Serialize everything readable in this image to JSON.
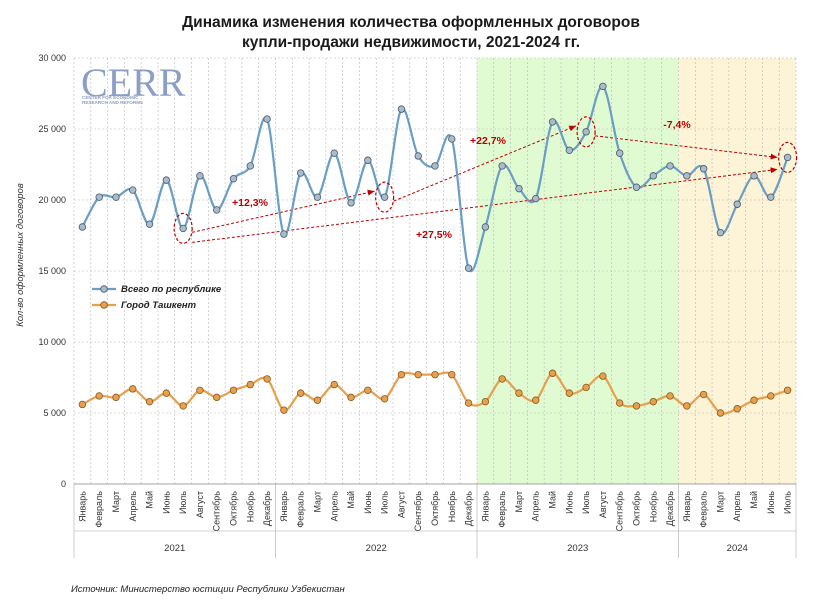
{
  "chart_data": {
    "type": "line",
    "title_line1": "Динамика изменения количества оформленных договоров",
    "title_line2": "купли-продажи недвижимости, 2021-2024 гг.",
    "ylabel": "Кол-во оформленных договоров",
    "ylim": [
      0,
      30000
    ],
    "y_ticks": [
      {
        "value": 0,
        "label": "0"
      },
      {
        "value": 5000,
        "label": "5 000"
      },
      {
        "value": 10000,
        "label": "10 000"
      },
      {
        "value": 15000,
        "label": "15 000"
      },
      {
        "value": 20000,
        "label": "20 000"
      },
      {
        "value": 25000,
        "label": "25 000"
      },
      {
        "value": 30000,
        "label": "30 000"
      }
    ],
    "grid": true,
    "legend_position": "center-left",
    "categories": [
      "Январь",
      "Февраль",
      "Март",
      "Апрель",
      "Май",
      "Июнь",
      "Июль",
      "Август",
      "Сентябрь",
      "Октябрь",
      "Ноябрь",
      "Декабрь",
      "Январь",
      "Февраль",
      "Март",
      "Апрель",
      "Май",
      "Июнь",
      "Июль",
      "Август",
      "Сентябрь",
      "Октябрь",
      "Ноябрь",
      "Декабрь",
      "Январь",
      "Февраль",
      "Март",
      "Апрель",
      "Май",
      "Июнь",
      "Июль",
      "Август",
      "Сентябрь",
      "Октябрь",
      "Ноябрь",
      "Декабрь",
      "Январь",
      "Февраль",
      "Март",
      "Апрель",
      "Май",
      "Июнь",
      "Июль"
    ],
    "years": [
      {
        "label": "2021",
        "start": 0,
        "end": 11
      },
      {
        "label": "2022",
        "start": 12,
        "end": 23
      },
      {
        "label": "2023",
        "start": 24,
        "end": 35
      },
      {
        "label": "2024",
        "start": 36,
        "end": 42
      }
    ],
    "series": [
      {
        "name": "Всего по республике",
        "color": "#6a9ec4",
        "marker_fill": "#a9bccc",
        "values": [
          18100,
          20200,
          20200,
          20700,
          18300,
          21400,
          18000,
          21700,
          19300,
          21500,
          22400,
          25700,
          17600,
          21900,
          20200,
          23300,
          19800,
          22800,
          20200,
          26400,
          23100,
          22400,
          24300,
          15200,
          18100,
          22400,
          20800,
          20100,
          25500,
          23500,
          24800,
          28000,
          23300,
          20900,
          21700,
          22400,
          21700,
          22200,
          17700,
          19700,
          21700,
          20200,
          23000
        ]
      },
      {
        "name": "Город Ташкент",
        "color": "#e6a04e",
        "marker_fill": "#e6a04e",
        "values": [
          5600,
          6200,
          6100,
          6700,
          5800,
          6400,
          5500,
          6600,
          6100,
          6600,
          7000,
          7400,
          5200,
          6400,
          5900,
          7000,
          6100,
          6600,
          6000,
          7700,
          7700,
          7700,
          7700,
          5700,
          5800,
          7400,
          6400,
          5900,
          7800,
          6400,
          6800,
          7600,
          5700,
          5500,
          5800,
          6200,
          5500,
          6300,
          5000,
          5300,
          5900,
          6200,
          6600
        ]
      }
    ],
    "shaded_periods": [
      {
        "start": 24,
        "end": 35,
        "color": "#e0fbd2"
      },
      {
        "start": 36,
        "end": 42,
        "color": "#fdf3d6"
      }
    ],
    "annotations": [
      {
        "text": "+12,3%",
        "from": 6,
        "to": 18
      },
      {
        "text": "+27,5%",
        "from": 6,
        "to": 42
      },
      {
        "text": "+22,7%",
        "from": 18,
        "to": 30
      },
      {
        "text": "-7,4%",
        "from": 30,
        "to": 42
      }
    ],
    "highlighted_points": [
      6,
      18,
      30,
      42
    ]
  },
  "logo": {
    "name": "CERR",
    "line1": "CENTER FOR ECONOMIC",
    "line2": "RESEARCH AND REFORMS"
  },
  "source": "Источник: Министерство юстиции Республики Узбекистан"
}
